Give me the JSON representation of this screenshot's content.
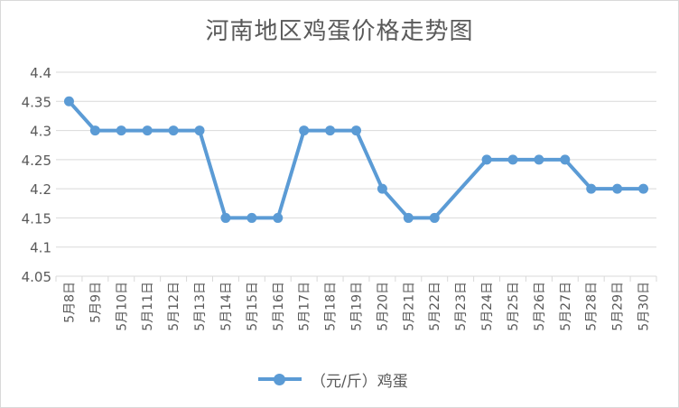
{
  "chart_data": {
    "type": "line",
    "title": "河南地区鸡蛋价格走势图",
    "xlabel": "",
    "ylabel": "",
    "categories": [
      "5月8日",
      "5月9日",
      "5月10日",
      "5月11日",
      "5月12日",
      "5月13日",
      "5月14日",
      "5月15日",
      "5月16日",
      "5月17日",
      "5月18日",
      "5月19日",
      "5月20日",
      "5月21日",
      "5月22日",
      "5月23日",
      "5月24日",
      "5月25日",
      "5月26日",
      "5月27日",
      "5月28日",
      "5月29日",
      "5月30日"
    ],
    "series": [
      {
        "name": "（元/斤）鸡蛋",
        "color": "#5b9bd5",
        "values": [
          4.35,
          4.3,
          4.3,
          4.3,
          4.3,
          4.3,
          4.15,
          4.15,
          4.15,
          4.3,
          4.3,
          4.3,
          4.2,
          4.15,
          4.15,
          null,
          4.25,
          4.25,
          4.25,
          4.25,
          4.2,
          4.2,
          4.2
        ]
      }
    ],
    "yticks": [
      "4.05",
      "4.1",
      "4.15",
      "4.2",
      "4.25",
      "4.3",
      "4.35",
      "4.4"
    ],
    "ylim": [
      4.05,
      4.4
    ],
    "grid": true,
    "legend_position": "bottom"
  }
}
